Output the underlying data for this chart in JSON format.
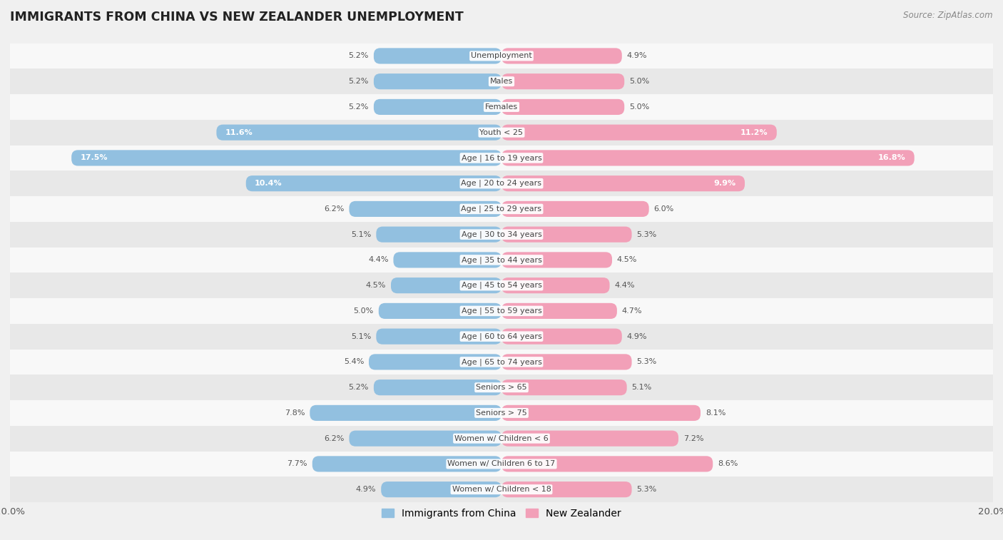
{
  "title": "IMMIGRANTS FROM CHINA VS NEW ZEALANDER UNEMPLOYMENT",
  "source": "Source: ZipAtlas.com",
  "categories": [
    "Unemployment",
    "Males",
    "Females",
    "Youth < 25",
    "Age | 16 to 19 years",
    "Age | 20 to 24 years",
    "Age | 25 to 29 years",
    "Age | 30 to 34 years",
    "Age | 35 to 44 years",
    "Age | 45 to 54 years",
    "Age | 55 to 59 years",
    "Age | 60 to 64 years",
    "Age | 65 to 74 years",
    "Seniors > 65",
    "Seniors > 75",
    "Women w/ Children < 6",
    "Women w/ Children 6 to 17",
    "Women w/ Children < 18"
  ],
  "china_values": [
    5.2,
    5.2,
    5.2,
    11.6,
    17.5,
    10.4,
    6.2,
    5.1,
    4.4,
    4.5,
    5.0,
    5.1,
    5.4,
    5.2,
    7.8,
    6.2,
    7.7,
    4.9
  ],
  "nz_values": [
    4.9,
    5.0,
    5.0,
    11.2,
    16.8,
    9.9,
    6.0,
    5.3,
    4.5,
    4.4,
    4.7,
    4.9,
    5.3,
    5.1,
    8.1,
    7.2,
    8.6,
    5.3
  ],
  "china_color": "#92c0e0",
  "nz_color": "#f2a0b8",
  "max_value": 20.0,
  "background_color": "#f0f0f0",
  "row_color_odd": "#f8f8f8",
  "row_color_even": "#e8e8e8",
  "label_color": "#444444",
  "value_color_outside": "#555555",
  "value_color_inside": "#ffffff",
  "bar_height": 0.62,
  "legend_china": "Immigrants from China",
  "legend_nz": "New Zealander",
  "inside_threshold": 9.0
}
